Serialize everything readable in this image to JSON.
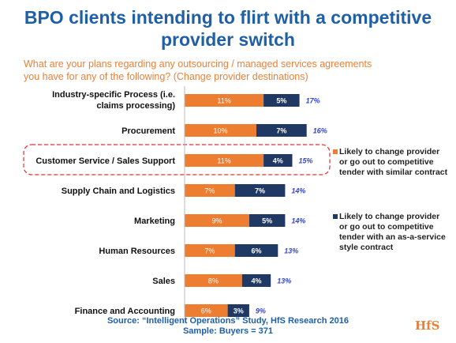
{
  "header": {
    "title_line1": "BPO clients intending to flirt with a competitive",
    "title_line2": "provider switch",
    "subtitle_line1": "What are your plans regarding any outsourcing / managed services agreements",
    "subtitle_line2": "you have for any of the following? (Change provider destinations)"
  },
  "footer": {
    "source_line1": "Source: “Intelligent Operations” Study, HfS Research 2016",
    "source_line2": "Sample: Buyers = 371",
    "logo": "HfS"
  },
  "colors": {
    "series1": "#ed7d31",
    "series2": "#1f3864",
    "total_label": "#3344cc",
    "highlight": "#e03030"
  },
  "legend": {
    "item1": "Likely to change provider or go out to competitive tender with similar contract",
    "item2": "Likely to change provider or go out to competitive tender with an as-a-service style contract"
  },
  "chart_data": {
    "type": "bar",
    "orientation": "horizontal",
    "stacked": true,
    "categories": [
      "Industry-specific Process (i.e. claims processing)",
      "Procurement",
      "Customer Service / Sales Support",
      "Supply Chain and Logistics",
      "Marketing",
      "Human Resources",
      "Sales",
      "Finance and Accounting"
    ],
    "series": [
      {
        "name": "Likely to change provider or go out to competitive tender with similar contract",
        "values": [
          11,
          10,
          11,
          7,
          9,
          7,
          8,
          6
        ],
        "labels": [
          "11%",
          "10%",
          "11%",
          "7%",
          "9%",
          "7%",
          "8%",
          "6%"
        ]
      },
      {
        "name": "Likely to change provider or go out to competitive tender with an as-a-service style contract",
        "values": [
          5,
          7,
          4,
          7,
          5,
          6,
          4,
          3
        ],
        "labels": [
          "5%",
          "7%",
          "4%",
          "7%",
          "5%",
          "6%",
          "4%",
          "3%"
        ]
      }
    ],
    "totals": [
      "17%",
      "16%",
      "15%",
      "14%",
      "14%",
      "13%",
      "13%",
      "9%"
    ],
    "highlighted_category": "Customer Service / Sales Support",
    "legend_position": "right",
    "grid": false
  }
}
